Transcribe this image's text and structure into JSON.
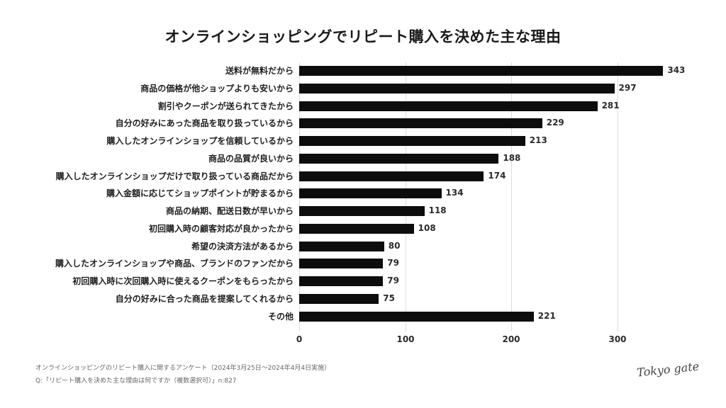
{
  "title": "オンラインショッピングでリピート購入を決めた主な理由",
  "chart_data": {
    "type": "bar",
    "orientation": "horizontal",
    "title": "オンラインショッピングでリピート購入を決めた主な理由",
    "xlabel": "",
    "ylabel": "",
    "xlim": [
      0,
      350
    ],
    "xticks": [
      0,
      100,
      200,
      300
    ],
    "grid": true,
    "bar_color": "#0d0d0d",
    "categories": [
      "送料が無料だから",
      "商品の価格が他ショップよりも安いから",
      "割引やクーポンが送られてきたから",
      "自分の好みにあった商品を取り扱っているから",
      "購入したオンラインショップを信頼しているから",
      "商品の品質が良いから",
      "購入したオンラインショップだけで取り扱っている商品だから",
      "購入金額に応じてショップポイントが貯まるから",
      "商品の納期、配送日数が早いから",
      "初回購入時の顧客対応が良かったから",
      "希望の決済方法があるから",
      "購入したオンラインショップや商品、ブランドのファンだから",
      "初回購入時に次回購入時に使えるクーポンをもらったから",
      "自分の好みに合った商品を提案してくれるから",
      "その他"
    ],
    "values": [
      343,
      297,
      281,
      229,
      213,
      188,
      174,
      134,
      118,
      108,
      80,
      79,
      79,
      75,
      221
    ]
  },
  "axis": {
    "ticks": [
      "0",
      "100",
      "200",
      "300"
    ]
  },
  "footnotes": {
    "survey": "オンラインショッピングのリピート購入に関するアンケート（2024年3月25日〜2024年4月4日実施）",
    "question": "Q:「リピート購入を決めた主な理由は何ですか（複数選択可）」n:827"
  },
  "logo": "Tokyo gate"
}
